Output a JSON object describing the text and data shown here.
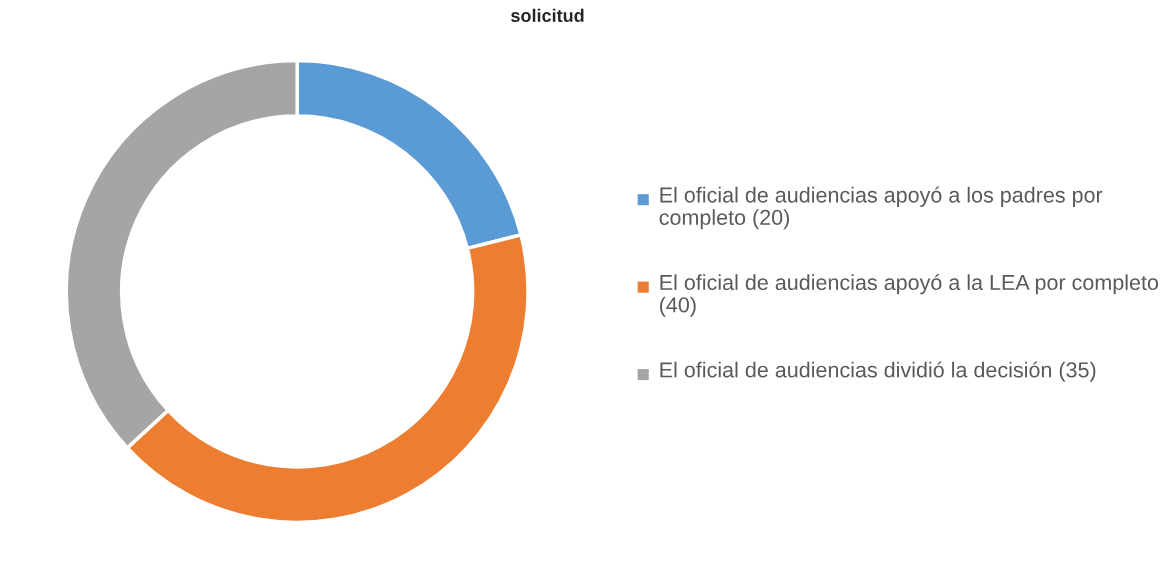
{
  "chart_data": {
    "type": "donut",
    "title": "solicitud",
    "categories": [
      "El oficial de audiencias apoyó a los padres por completo (20)",
      "El oficial de audiencias apoyó a la LEA por completo (40)",
      "El oficial de audiencias dividió la decisión (35)"
    ],
    "values": [
      20,
      40,
      35
    ],
    "colors": [
      "#5b9bd5",
      "#ed7d31",
      "#a5a5a5"
    ],
    "legend": "right"
  }
}
